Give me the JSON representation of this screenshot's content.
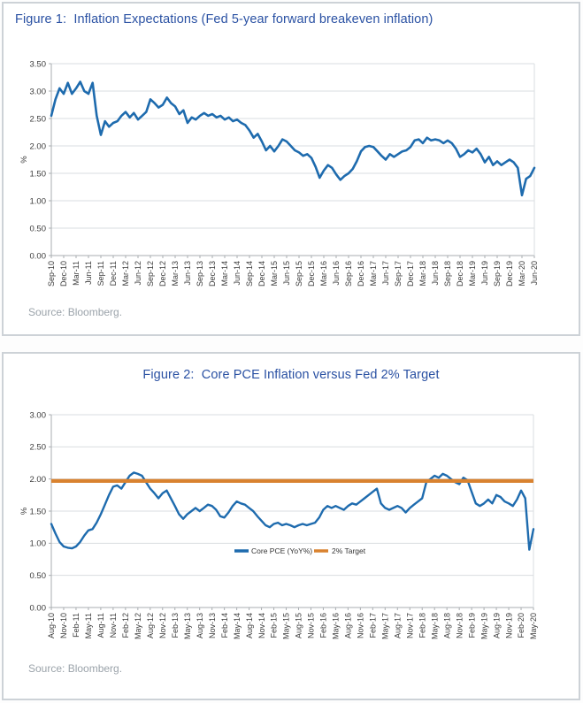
{
  "colors": {
    "line_blue": "#1E6BAE",
    "target_orange": "#D9822F",
    "title_blue": "#2A51A3",
    "grid": "#DADDE0",
    "axis": "#A9ADB1",
    "source_gray": "#9BA3AA"
  },
  "chart_data": [
    {
      "id": "fig1",
      "type": "line",
      "title": "Figure 1:  Inflation Expectations (Fed 5-year forward breakeven inflation)",
      "source": "Source: Bloomberg.",
      "ylabel": "%",
      "ylim": [
        0,
        3.5
      ],
      "ytick_step": 0.5,
      "ytick_labels": [
        "0.00",
        "0.50",
        "1.00",
        "1.50",
        "2.00",
        "2.50",
        "3.00",
        "3.50"
      ],
      "grid": "horizontal",
      "xtick_every": 3,
      "xtick_labels": [
        "Sep-10",
        "Dec-10",
        "Mar-11",
        "Jun-11",
        "Sep-11",
        "Dec-11",
        "Mar-12",
        "Jun-12",
        "Sep-12",
        "Dec-12",
        "Mar-13",
        "Jun-13",
        "Sep-13",
        "Dec-13",
        "Mar-14",
        "Jun-14",
        "Sep-14",
        "Dec-14",
        "Mar-15",
        "Jun-15",
        "Sep-15",
        "Dec-15",
        "Mar-16",
        "Jun-16",
        "Sep-16",
        "Dec-16",
        "Mar-17",
        "Jun-17",
        "Sep-17",
        "Dec-17",
        "Mar-18",
        "Jun-18",
        "Sep-18",
        "Dec-18",
        "Mar-19",
        "Jun-19",
        "Sep-19",
        "Dec-19",
        "Mar-20",
        "Jun-20"
      ],
      "x": [
        "Sep-10",
        "Oct-10",
        "Nov-10",
        "Dec-10",
        "Jan-11",
        "Feb-11",
        "Mar-11",
        "Apr-11",
        "May-11",
        "Jun-11",
        "Jul-11",
        "Aug-11",
        "Sep-11",
        "Oct-11",
        "Nov-11",
        "Dec-11",
        "Jan-12",
        "Feb-12",
        "Mar-12",
        "Apr-12",
        "May-12",
        "Jun-12",
        "Jul-12",
        "Aug-12",
        "Sep-12",
        "Oct-12",
        "Nov-12",
        "Dec-12",
        "Jan-13",
        "Feb-13",
        "Mar-13",
        "Apr-13",
        "May-13",
        "Jun-13",
        "Jul-13",
        "Aug-13",
        "Sep-13",
        "Oct-13",
        "Nov-13",
        "Dec-13",
        "Jan-14",
        "Feb-14",
        "Mar-14",
        "Apr-14",
        "May-14",
        "Jun-14",
        "Jul-14",
        "Aug-14",
        "Sep-14",
        "Oct-14",
        "Nov-14",
        "Dec-14",
        "Jan-15",
        "Feb-15",
        "Mar-15",
        "Apr-15",
        "May-15",
        "Jun-15",
        "Jul-15",
        "Aug-15",
        "Sep-15",
        "Oct-15",
        "Nov-15",
        "Dec-15",
        "Jan-16",
        "Feb-16",
        "Mar-16",
        "Apr-16",
        "May-16",
        "Jun-16",
        "Jul-16",
        "Aug-16",
        "Sep-16",
        "Oct-16",
        "Nov-16",
        "Dec-16",
        "Jan-17",
        "Feb-17",
        "Mar-17",
        "Apr-17",
        "May-17",
        "Jun-17",
        "Jul-17",
        "Aug-17",
        "Sep-17",
        "Oct-17",
        "Nov-17",
        "Dec-17",
        "Jan-18",
        "Feb-18",
        "Mar-18",
        "Apr-18",
        "May-18",
        "Jun-18",
        "Jul-18",
        "Aug-18",
        "Sep-18",
        "Oct-18",
        "Nov-18",
        "Dec-18",
        "Jan-19",
        "Feb-19",
        "Mar-19",
        "Apr-19",
        "May-19",
        "Jun-19",
        "Jul-19",
        "Aug-19",
        "Sep-19",
        "Oct-19",
        "Nov-19",
        "Dec-19",
        "Jan-20",
        "Feb-20",
        "Mar-20",
        "Apr-20",
        "May-20",
        "Jun-20"
      ],
      "series": [
        {
          "name": "Fed 5-year forward breakeven inflation",
          "color": "#1E6BAE",
          "values": [
            2.55,
            2.85,
            3.05,
            2.95,
            3.15,
            2.95,
            3.05,
            3.17,
            3.0,
            2.95,
            3.15,
            2.55,
            2.2,
            2.45,
            2.35,
            2.42,
            2.45,
            2.55,
            2.62,
            2.52,
            2.6,
            2.48,
            2.55,
            2.62,
            2.85,
            2.78,
            2.7,
            2.75,
            2.88,
            2.78,
            2.72,
            2.58,
            2.65,
            2.42,
            2.52,
            2.48,
            2.55,
            2.6,
            2.55,
            2.58,
            2.52,
            2.55,
            2.48,
            2.52,
            2.45,
            2.48,
            2.42,
            2.38,
            2.28,
            2.15,
            2.22,
            2.08,
            1.92,
            2.0,
            1.9,
            2.0,
            2.12,
            2.08,
            2.0,
            1.92,
            1.88,
            1.82,
            1.85,
            1.78,
            1.62,
            1.42,
            1.55,
            1.65,
            1.6,
            1.48,
            1.38,
            1.45,
            1.5,
            1.58,
            1.72,
            1.9,
            1.98,
            2.0,
            1.98,
            1.9,
            1.82,
            1.75,
            1.85,
            1.8,
            1.85,
            1.9,
            1.92,
            1.98,
            2.1,
            2.12,
            2.05,
            2.15,
            2.1,
            2.12,
            2.1,
            2.05,
            2.1,
            2.05,
            1.95,
            1.8,
            1.85,
            1.92,
            1.88,
            1.95,
            1.85,
            1.7,
            1.8,
            1.65,
            1.72,
            1.65,
            1.7,
            1.75,
            1.7,
            1.6,
            1.1,
            1.4,
            1.45,
            1.6
          ]
        }
      ]
    },
    {
      "id": "fig2",
      "type": "line",
      "title": "Figure 2:  Core PCE Inflation versus Fed 2% Target",
      "source": "Source: Bloomberg.",
      "ylabel": "%",
      "ylim": [
        0,
        3.0
      ],
      "ytick_step": 0.5,
      "ytick_labels": [
        "0.00",
        "0.50",
        "1.00",
        "1.50",
        "2.00",
        "2.50",
        "3.00"
      ],
      "grid": "horizontal",
      "xtick_every": 3,
      "xtick_labels": [
        "Aug-10",
        "Nov-10",
        "Feb-11",
        "May-11",
        "Aug-11",
        "Nov-11",
        "Feb-12",
        "May-12",
        "Aug-12",
        "Nov-12",
        "Feb-13",
        "May-13",
        "Aug-13",
        "Nov-13",
        "Feb-14",
        "May-14",
        "Aug-14",
        "Nov-14",
        "Feb-15",
        "May-15",
        "Aug-15",
        "Nov-15",
        "Feb-16",
        "May-16",
        "Aug-16",
        "Nov-16",
        "Feb-17",
        "May-17",
        "Aug-17",
        "Nov-17",
        "Feb-18",
        "May-18",
        "Aug-18",
        "Nov-18",
        "Feb-19",
        "May-19",
        "Aug-19",
        "Nov-19",
        "Feb-20",
        "May-20"
      ],
      "x": [
        "Aug-10",
        "Sep-10",
        "Oct-10",
        "Nov-10",
        "Dec-10",
        "Jan-11",
        "Feb-11",
        "Mar-11",
        "Apr-11",
        "May-11",
        "Jun-11",
        "Jul-11",
        "Aug-11",
        "Sep-11",
        "Oct-11",
        "Nov-11",
        "Dec-11",
        "Jan-12",
        "Feb-12",
        "Mar-12",
        "Apr-12",
        "May-12",
        "Jun-12",
        "Jul-12",
        "Aug-12",
        "Sep-12",
        "Oct-12",
        "Nov-12",
        "Dec-12",
        "Jan-13",
        "Feb-13",
        "Mar-13",
        "Apr-13",
        "May-13",
        "Jun-13",
        "Jul-13",
        "Aug-13",
        "Sep-13",
        "Oct-13",
        "Nov-13",
        "Dec-13",
        "Jan-14",
        "Feb-14",
        "Mar-14",
        "Apr-14",
        "May-14",
        "Jun-14",
        "Jul-14",
        "Aug-14",
        "Sep-14",
        "Oct-14",
        "Nov-14",
        "Dec-14",
        "Jan-15",
        "Feb-15",
        "Mar-15",
        "Apr-15",
        "May-15",
        "Jun-15",
        "Jul-15",
        "Aug-15",
        "Sep-15",
        "Oct-15",
        "Nov-15",
        "Dec-15",
        "Jan-16",
        "Feb-16",
        "Mar-16",
        "Apr-16",
        "May-16",
        "Jun-16",
        "Jul-16",
        "Aug-16",
        "Sep-16",
        "Oct-16",
        "Nov-16",
        "Dec-16",
        "Jan-17",
        "Feb-17",
        "Mar-17",
        "Apr-17",
        "May-17",
        "Jun-17",
        "Jul-17",
        "Aug-17",
        "Sep-17",
        "Oct-17",
        "Nov-17",
        "Dec-17",
        "Jan-18",
        "Feb-18",
        "Mar-18",
        "Apr-18",
        "May-18",
        "Jun-18",
        "Jul-18",
        "Aug-18",
        "Sep-18",
        "Oct-18",
        "Nov-18",
        "Dec-18",
        "Jan-19",
        "Feb-19",
        "Mar-19",
        "Apr-19",
        "May-19",
        "Jun-19",
        "Jul-19",
        "Aug-19",
        "Sep-19",
        "Oct-19",
        "Nov-19",
        "Dec-19",
        "Jan-20",
        "Feb-20",
        "Mar-20",
        "Apr-20",
        "May-20"
      ],
      "legend": {
        "position": "inside-bottom-center",
        "entries": [
          {
            "label": "Core PCE (YoY%)",
            "color": "#1E6BAE"
          },
          {
            "label": "2% Target",
            "color": "#D9822F"
          }
        ]
      },
      "series": [
        {
          "name": "Core PCE (YoY%)",
          "color": "#1E6BAE",
          "values": [
            1.3,
            1.15,
            1.02,
            0.95,
            0.93,
            0.92,
            0.95,
            1.02,
            1.12,
            1.2,
            1.22,
            1.32,
            1.45,
            1.6,
            1.75,
            1.88,
            1.9,
            1.85,
            1.95,
            2.05,
            2.1,
            2.08,
            2.05,
            1.95,
            1.85,
            1.78,
            1.7,
            1.78,
            1.82,
            1.7,
            1.58,
            1.45,
            1.38,
            1.45,
            1.5,
            1.55,
            1.5,
            1.55,
            1.6,
            1.58,
            1.52,
            1.42,
            1.4,
            1.48,
            1.58,
            1.65,
            1.62,
            1.6,
            1.55,
            1.5,
            1.42,
            1.35,
            1.28,
            1.25,
            1.3,
            1.32,
            1.28,
            1.3,
            1.28,
            1.25,
            1.28,
            1.3,
            1.28,
            1.3,
            1.32,
            1.4,
            1.52,
            1.58,
            1.55,
            1.58,
            1.55,
            1.52,
            1.58,
            1.62,
            1.6,
            1.65,
            1.7,
            1.75,
            1.8,
            1.85,
            1.62,
            1.55,
            1.52,
            1.55,
            1.58,
            1.55,
            1.48,
            1.55,
            1.6,
            1.65,
            1.7,
            1.95,
            2.0,
            2.05,
            2.02,
            2.08,
            2.05,
            2.0,
            1.95,
            1.92,
            2.02,
            1.98,
            1.8,
            1.62,
            1.58,
            1.62,
            1.68,
            1.62,
            1.75,
            1.72,
            1.65,
            1.62,
            1.58,
            1.68,
            1.82,
            1.7,
            0.9,
            1.22
          ]
        },
        {
          "name": "2% Target",
          "color": "#D9822F",
          "value": 1.97
        }
      ]
    }
  ]
}
